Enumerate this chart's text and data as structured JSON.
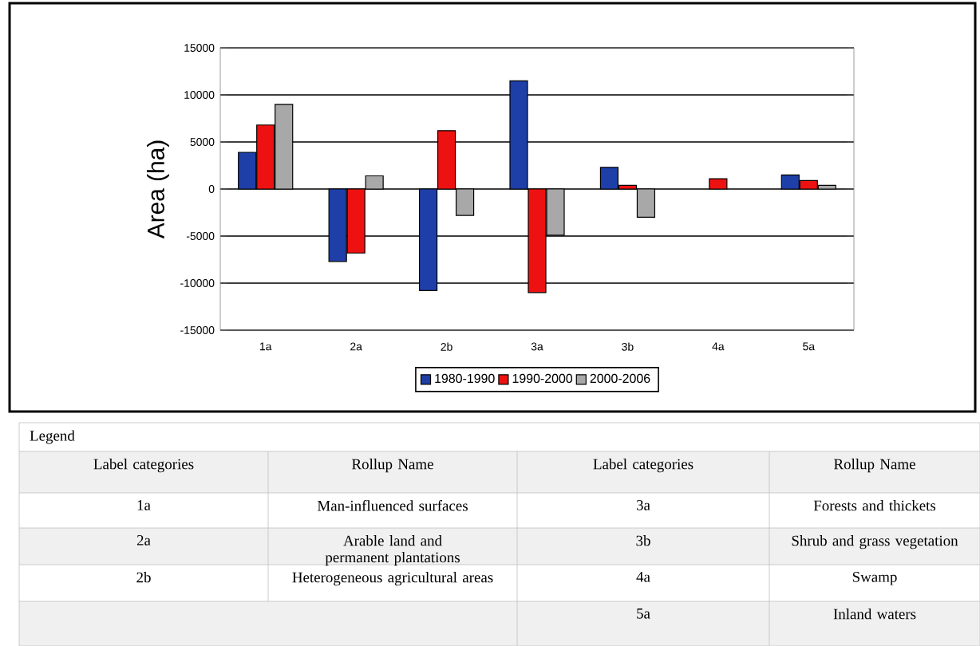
{
  "chart_data": {
    "type": "bar",
    "ylabel": "Area (ha)",
    "categories": [
      "1a",
      "2a",
      "2b",
      "3a",
      "3b",
      "4a",
      "5a"
    ],
    "series": [
      {
        "name": "1980-1990",
        "color": "#1f3fa8",
        "values": [
          3900,
          -7700,
          -10800,
          11500,
          2300,
          null,
          1500
        ]
      },
      {
        "name": "1990-2000",
        "color": "#ee1111",
        "values": [
          6800,
          -6800,
          6200,
          -11000,
          400,
          1100,
          900
        ]
      },
      {
        "name": "2000-2006",
        "color": "#a8a8a8",
        "values": [
          9000,
          1400,
          -2800,
          -4900,
          -3000,
          null,
          400
        ]
      }
    ],
    "ylim": [
      -15000,
      15000
    ],
    "yticks": [
      -15000,
      -10000,
      -5000,
      0,
      5000,
      10000,
      15000
    ],
    "grid": "y",
    "legend": "bottom",
    "annotations": [
      "Legend",
      "Label categories",
      "Rollup Name",
      "Label categories",
      "Rollup Name",
      "1a",
      "Man-influenced surfaces",
      "3a",
      "Forests and thickets",
      "2a",
      "Arable land and permanent plantations",
      "3b",
      "Shrub and grass vegetation",
      "2b",
      "Heterogeneous agricultural areas",
      "4a",
      "Swamp",
      "5a",
      "Inland waters"
    ]
  }
}
